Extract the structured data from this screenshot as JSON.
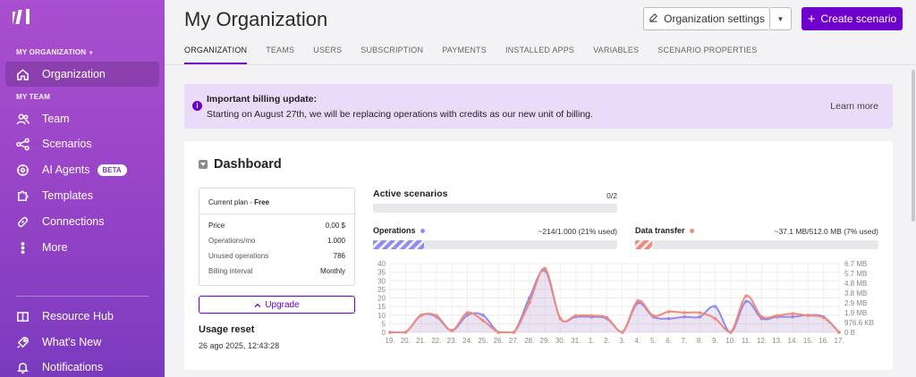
{
  "sidebar": {
    "org_section": "MY ORGANIZATION",
    "team_section": "MY TEAM",
    "items": [
      {
        "label": "Organization",
        "icon": "home-icon"
      },
      {
        "label": "Team",
        "icon": "users-icon"
      },
      {
        "label": "Scenarios",
        "icon": "share-nodes-icon"
      },
      {
        "label": "AI Agents",
        "icon": "ai-agent-icon",
        "badge": "BETA"
      },
      {
        "label": "Templates",
        "icon": "puzzle-icon"
      },
      {
        "label": "Connections",
        "icon": "link-icon"
      },
      {
        "label": "More",
        "icon": "more-vertical-icon"
      }
    ],
    "bottom_items": [
      {
        "label": "Resource Hub",
        "icon": "book-icon"
      },
      {
        "label": "What's New",
        "icon": "rocket-icon"
      },
      {
        "label": "Notifications",
        "icon": "bell-icon"
      }
    ]
  },
  "header": {
    "title": "My Organization",
    "settings_label": "Organization settings",
    "create_label": "Create scenario"
  },
  "tabs": [
    "ORGANIZATION",
    "TEAMS",
    "USERS",
    "SUBSCRIPTION",
    "PAYMENTS",
    "INSTALLED APPS",
    "VARIABLES",
    "SCENARIO PROPERTIES"
  ],
  "banner": {
    "title": "Important billing update:",
    "text": "Starting on August 27th, we will be replacing operations with credits as our new unit of billing.",
    "link": "Learn more"
  },
  "dashboard": {
    "title": "Dashboard",
    "plan": {
      "label": "Current plan - ",
      "name": "Free",
      "rows": [
        {
          "key": "Price",
          "value": "0,00 $"
        },
        {
          "key": "Operations/mo",
          "value": "1.000"
        },
        {
          "key": "Unused operations",
          "value": "786"
        },
        {
          "key": "Billing interval",
          "value": "Monthly"
        }
      ]
    },
    "upgrade_label": "Upgrade",
    "usage_reset_title": "Usage reset",
    "usage_reset_date": "26 ago 2025, 12:43:28",
    "active_scenarios": {
      "label": "Active scenarios",
      "value": "0/2",
      "fraction": 0
    },
    "operations": {
      "label": "Operations",
      "value": "~214/1.000 (21% used)",
      "fraction": 0.21
    },
    "data_transfer": {
      "label": "Data transfer",
      "value": "~37.1 MB/512.0 MB (7% used)",
      "fraction": 0.07
    }
  },
  "colors": {
    "accent": "#6d00cc",
    "operations": "#8f8cf0",
    "data_transfer": "#f08a7a"
  },
  "chart_data": {
    "type": "line",
    "x": [
      "19.",
      "20.",
      "21.",
      "22.",
      "23.",
      "24.",
      "25.",
      "26.",
      "27.",
      "28.",
      "29.",
      "30.",
      "31.",
      "1.",
      "2.",
      "3.",
      "4.",
      "5.",
      "6.",
      "7.",
      "8.",
      "9.",
      "10.",
      "11.",
      "12.",
      "13.",
      "14.",
      "15.",
      "16.",
      "17."
    ],
    "y_left_ticks": [
      "0",
      "5",
      "10",
      "15",
      "20",
      "25",
      "30",
      "35",
      "40"
    ],
    "y_left_range": [
      0,
      40
    ],
    "y_right_ticks": [
      "0 B",
      "976.6 KB",
      "1.9 MB",
      "2.9 MB",
      "3.8 MB",
      "4.8 MB",
      "5.7 MB",
      "6.7 MB"
    ],
    "y_right_range": [
      0,
      7
    ],
    "series": [
      {
        "name": "Operations",
        "axis": "left",
        "values": [
          0,
          0,
          10,
          9,
          1,
          10,
          10,
          0,
          0,
          20,
          36,
          8,
          9,
          9,
          8,
          0,
          17,
          9,
          8,
          9,
          9,
          15,
          0,
          18,
          8,
          9,
          9,
          10,
          9,
          0
        ]
      },
      {
        "name": "Data transfer",
        "axis": "right",
        "values": [
          0,
          0,
          1.7,
          1.7,
          0.2,
          2.0,
          1.2,
          0,
          0,
          3.0,
          6.5,
          1.4,
          1.7,
          1.7,
          1.5,
          0,
          3.2,
          1.7,
          2.1,
          2.0,
          2.0,
          1.4,
          0,
          3.7,
          1.6,
          1.7,
          1.9,
          1.7,
          1.5,
          0
        ]
      }
    ],
    "grid": true
  }
}
